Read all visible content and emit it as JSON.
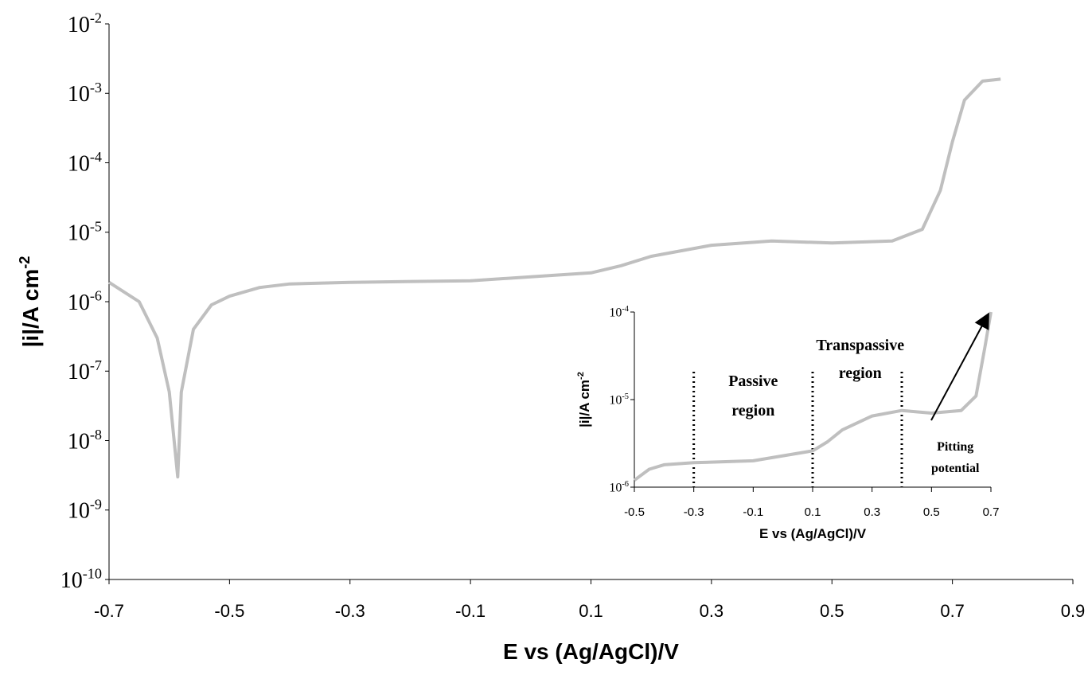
{
  "chart_data": [
    {
      "type": "line",
      "x_label": "E vs (Ag/AgCl)/V",
      "y_label": "|i|/A cm-2",
      "log_y": true,
      "color": "#bfbfbf",
      "x": [
        -0.7,
        -0.65,
        -0.62,
        -0.6,
        -0.586,
        -0.58,
        -0.56,
        -0.53,
        -0.5,
        -0.45,
        -0.4,
        -0.3,
        -0.1,
        0.1,
        0.15,
        0.2,
        0.3,
        0.4,
        0.5,
        0.6,
        0.65,
        0.68,
        0.7,
        0.72,
        0.75,
        0.78
      ],
      "values": [
        1.9e-06,
        1e-06,
        3e-07,
        5e-08,
        3e-09,
        5e-08,
        4e-07,
        9e-07,
        1.2e-06,
        1.6e-06,
        1.8e-06,
        1.9e-06,
        2e-06,
        2.6e-06,
        3.3e-06,
        4.5e-06,
        6.5e-06,
        7.5e-06,
        7e-06,
        7.5e-06,
        1.1e-05,
        4e-05,
        0.0002,
        0.0008,
        0.0015,
        0.0016
      ],
      "xlim": [
        -0.7,
        0.9
      ],
      "xticks": [
        -0.7,
        -0.5,
        -0.3,
        -0.1,
        0.1,
        0.3,
        0.5,
        0.7,
        0.9
      ],
      "ylim": [
        1e-10,
        0.01
      ],
      "yticks": [
        {
          "value": 1e-10,
          "label": "10-10"
        },
        {
          "value": 1e-09,
          "label": "10-9"
        },
        {
          "value": 1e-08,
          "label": "10-8"
        },
        {
          "value": 1e-07,
          "label": "10-7"
        },
        {
          "value": 1e-06,
          "label": "10-6"
        },
        {
          "value": 1e-05,
          "label": "10-5"
        },
        {
          "value": 0.0001,
          "label": "10-4"
        },
        {
          "value": 0.001,
          "label": "10-3"
        },
        {
          "value": 0.01,
          "label": "10-2"
        }
      ]
    },
    {
      "type": "line",
      "x_label": "E vs (Ag/AgCl)/V",
      "y_label": "|i|/A cm-2",
      "log_y": true,
      "color": "#bfbfbf",
      "x": [
        -0.5,
        -0.45,
        -0.4,
        -0.3,
        -0.1,
        0.1,
        0.15,
        0.2,
        0.3,
        0.4,
        0.5,
        0.6,
        0.65,
        0.68,
        0.7
      ],
      "values": [
        1.2e-06,
        1.6e-06,
        1.8e-06,
        1.9e-06,
        2e-06,
        2.6e-06,
        3.3e-06,
        4.5e-06,
        6.5e-06,
        7.5e-06,
        7e-06,
        7.5e-06,
        1.1e-05,
        4e-05,
        0.0001
      ],
      "xlim": [
        -0.5,
        0.7
      ],
      "xticks": [
        -0.5,
        -0.3,
        -0.1,
        0.1,
        0.3,
        0.5,
        0.7
      ],
      "ylim": [
        1e-06,
        0.0001
      ],
      "yticks": [
        {
          "value": 1e-06,
          "label": "10-6"
        },
        {
          "value": 1e-05,
          "label": "10-5"
        },
        {
          "value": 0.0001,
          "label": "10-4"
        }
      ],
      "vlines": [
        -0.3,
        0.1,
        0.4
      ],
      "annotations": [
        {
          "lines": [
            "Passive",
            "region"
          ]
        },
        {
          "lines": [
            "Transpassive",
            "region"
          ]
        },
        {
          "lines": [
            "Pitting",
            "potential"
          ]
        }
      ]
    }
  ]
}
